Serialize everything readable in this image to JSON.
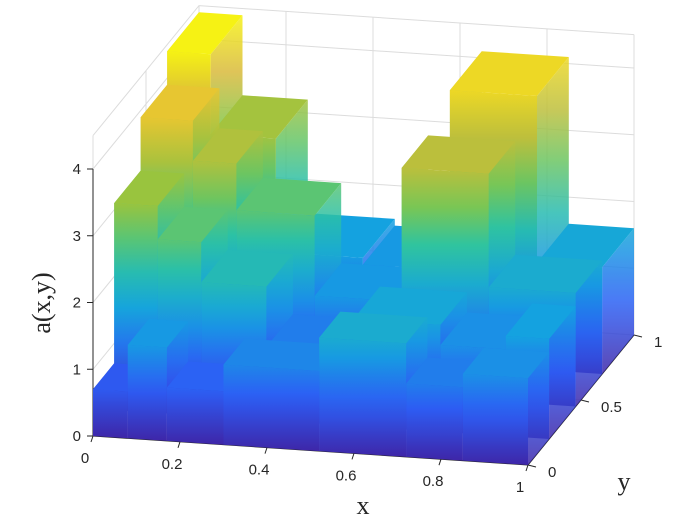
{
  "chart_data": {
    "type": "surface",
    "title": "",
    "xlabel": "x",
    "ylabel": "y",
    "zlabel": "a(x,y)",
    "colormap": "parula",
    "colors": [
      "#3e26a8",
      "#2d5df5",
      "#14a2e0",
      "#2ec4a0",
      "#8ec63f",
      "#e2b93a",
      "#f9fb0e"
    ],
    "xlim": [
      0,
      1
    ],
    "ylim": [
      0,
      1
    ],
    "zlim": [
      0,
      4.5
    ],
    "xticks": [
      0,
      0.2,
      0.4,
      0.6,
      0.8,
      1
    ],
    "xtick_labels": [
      "0",
      "0.2",
      "0.4",
      "0.6",
      "0.8",
      "1"
    ],
    "yticks": [
      0,
      0.5,
      1
    ],
    "ytick_labels": [
      "0",
      "0.5",
      "1"
    ],
    "zticks": [
      0,
      1,
      2,
      3,
      4
    ],
    "ztick_labels": [
      "0",
      "1",
      "2",
      "3",
      "4"
    ],
    "grid": true,
    "cells": [
      {
        "x": [
          0.0,
          0.08
        ],
        "y": [
          0.0,
          0.2
        ],
        "z": 0.7
      },
      {
        "x": [
          0.08,
          0.17
        ],
        "y": [
          0.0,
          0.2
        ],
        "z": 1.4
      },
      {
        "x": [
          0.17,
          0.3
        ],
        "y": [
          0.0,
          0.2
        ],
        "z": 0.8
      },
      {
        "x": [
          0.3,
          0.52
        ],
        "y": [
          0.0,
          0.2
        ],
        "z": 1.2
      },
      {
        "x": [
          0.52,
          0.72
        ],
        "y": [
          0.0,
          0.2
        ],
        "z": 1.7
      },
      {
        "x": [
          0.72,
          0.85
        ],
        "y": [
          0.0,
          0.2
        ],
        "z": 1.1
      },
      {
        "x": [
          0.85,
          1.0
        ],
        "y": [
          0.0,
          0.2
        ],
        "z": 1.3
      },
      {
        "x": [
          0.0,
          0.1
        ],
        "y": [
          0.2,
          0.45
        ],
        "z": 3.1
      },
      {
        "x": [
          0.1,
          0.2
        ],
        "y": [
          0.2,
          0.45
        ],
        "z": 2.6
      },
      {
        "x": [
          0.2,
          0.35
        ],
        "y": [
          0.2,
          0.45
        ],
        "z": 2.0
      },
      {
        "x": [
          0.35,
          0.55
        ],
        "y": [
          0.2,
          0.45
        ],
        "z": 1.1
      },
      {
        "x": [
          0.55,
          0.75
        ],
        "y": [
          0.2,
          0.45
        ],
        "z": 1.6
      },
      {
        "x": [
          0.75,
          0.9
        ],
        "y": [
          0.2,
          0.45
        ],
        "z": 1.3
      },
      {
        "x": [
          0.9,
          1.0
        ],
        "y": [
          0.2,
          0.45
        ],
        "z": 1.5
      },
      {
        "x": [
          0.0,
          0.12
        ],
        "y": [
          0.45,
          0.7
        ],
        "z": 3.9
      },
      {
        "x": [
          0.12,
          0.22
        ],
        "y": [
          0.45,
          0.7
        ],
        "z": 3.3
      },
      {
        "x": [
          0.22,
          0.4
        ],
        "y": [
          0.45,
          0.7
        ],
        "z": 2.6
      },
      {
        "x": [
          0.4,
          0.6
        ],
        "y": [
          0.45,
          0.7
        ],
        "z": 1.4
      },
      {
        "x": [
          0.6,
          0.8
        ],
        "y": [
          0.45,
          0.7
        ],
        "z": 3.4
      },
      {
        "x": [
          0.8,
          1.0
        ],
        "y": [
          0.45,
          0.7
        ],
        "z": 1.7
      },
      {
        "x": [
          0.0,
          0.1
        ],
        "y": [
          0.7,
          1.0
        ],
        "z": 4.4
      },
      {
        "x": [
          0.1,
          0.25
        ],
        "y": [
          0.7,
          1.0
        ],
        "z": 3.2
      },
      {
        "x": [
          0.25,
          0.45
        ],
        "y": [
          0.7,
          1.0
        ],
        "z": 1.5
      },
      {
        "x": [
          0.45,
          0.65
        ],
        "y": [
          0.7,
          1.0
        ],
        "z": 1.4
      },
      {
        "x": [
          0.65,
          0.85
        ],
        "y": [
          0.7,
          1.0
        ],
        "z": 4.1
      },
      {
        "x": [
          0.85,
          1.0
        ],
        "y": [
          0.7,
          1.0
        ],
        "z": 1.6
      }
    ]
  }
}
